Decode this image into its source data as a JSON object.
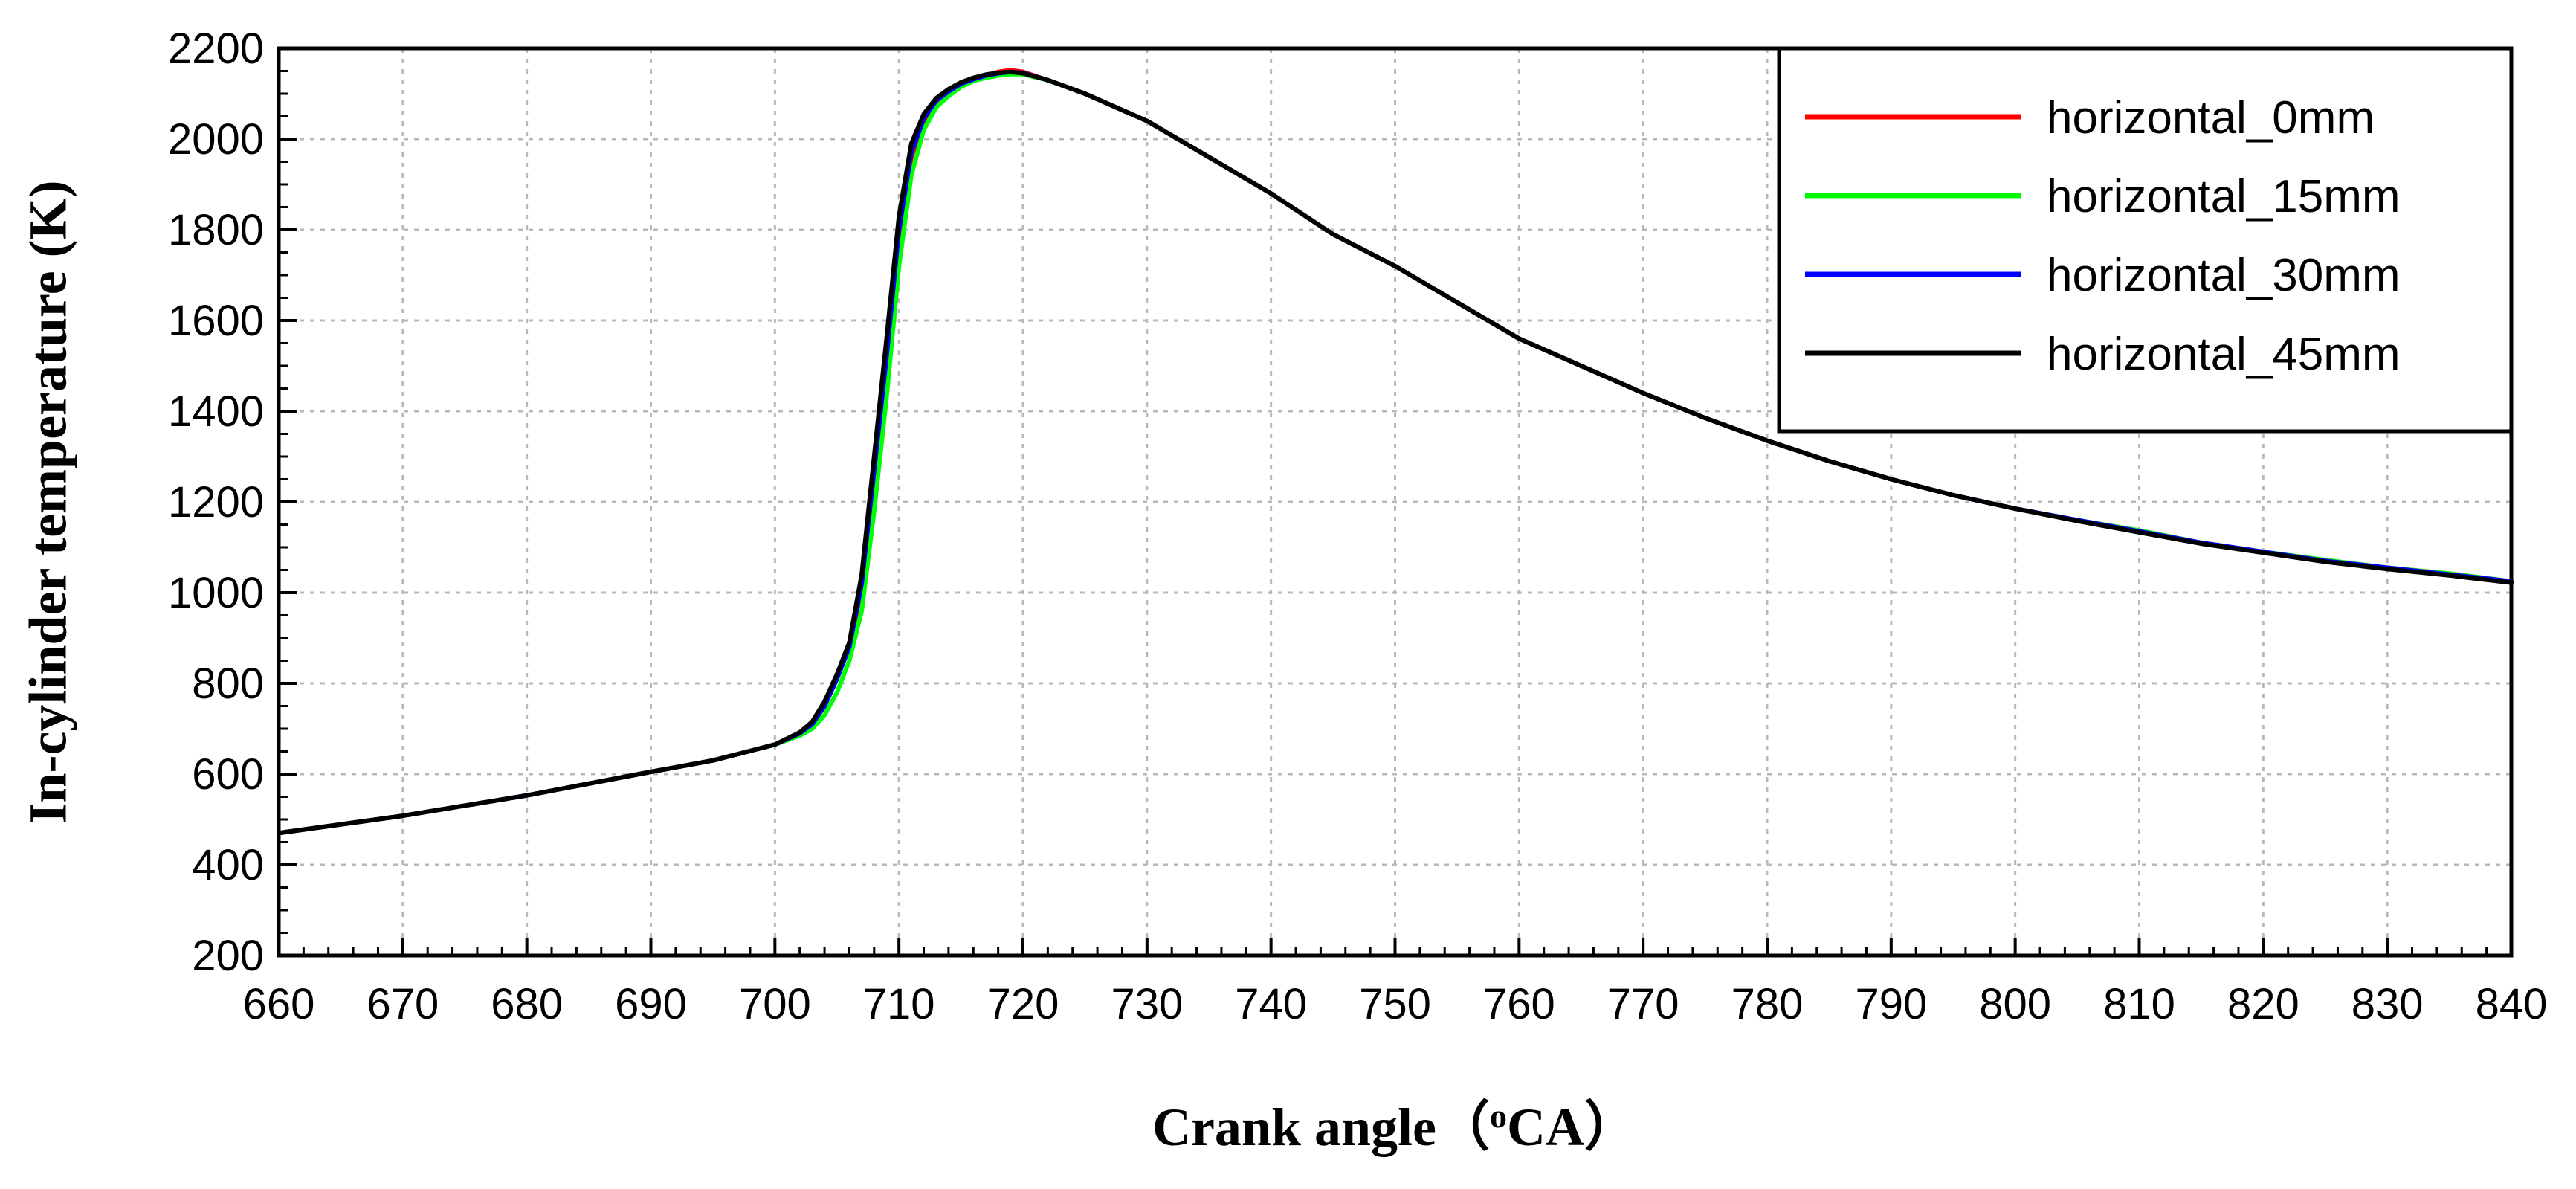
{
  "chart_data": {
    "type": "line",
    "title": "",
    "xlabel_pre": "Crank angle（",
    "xlabel_sup": "o",
    "xlabel_post": "CA）",
    "ylabel": "In-cylinder temperature (K)",
    "xlim": [
      660,
      840
    ],
    "ylim": [
      200,
      2200
    ],
    "xticks": [
      "660",
      "670",
      "680",
      "690",
      "700",
      "710",
      "720",
      "730",
      "740",
      "750",
      "760",
      "770",
      "780",
      "790",
      "800",
      "810",
      "820",
      "830",
      "840"
    ],
    "yticks": [
      "200",
      "400",
      "600",
      "800",
      "1000",
      "1200",
      "1400",
      "1600",
      "1800",
      "2000",
      "2200"
    ],
    "grid": true,
    "legend_position": "top-right",
    "series": [
      {
        "name": "horizontal_0mm",
        "color": "#ff0000",
        "points": [
          [
            660,
            470
          ],
          [
            670,
            508
          ],
          [
            680,
            553
          ],
          [
            690,
            605
          ],
          [
            695,
            630
          ],
          [
            700,
            665
          ],
          [
            702,
            690
          ],
          [
            703,
            710
          ],
          [
            704,
            750
          ],
          [
            705,
            810
          ],
          [
            706,
            880
          ],
          [
            707,
            1010
          ],
          [
            708,
            1250
          ],
          [
            709,
            1500
          ],
          [
            710,
            1780
          ],
          [
            711,
            1960
          ],
          [
            712,
            2040
          ],
          [
            713,
            2080
          ],
          [
            714,
            2100
          ],
          [
            715,
            2120
          ],
          [
            716,
            2130
          ],
          [
            717,
            2140
          ],
          [
            718,
            2148
          ],
          [
            719,
            2152
          ],
          [
            720,
            2148
          ],
          [
            722,
            2130
          ],
          [
            725,
            2100
          ],
          [
            730,
            2040
          ],
          [
            735,
            1960
          ],
          [
            740,
            1880
          ],
          [
            745,
            1790
          ],
          [
            750,
            1720
          ],
          [
            755,
            1640
          ],
          [
            760,
            1560
          ],
          [
            765,
            1500
          ],
          [
            770,
            1440
          ],
          [
            775,
            1385
          ],
          [
            780,
            1335
          ],
          [
            785,
            1290
          ],
          [
            790,
            1250
          ],
          [
            795,
            1215
          ],
          [
            800,
            1185
          ],
          [
            805,
            1160
          ],
          [
            810,
            1137
          ],
          [
            815,
            1110
          ],
          [
            820,
            1090
          ],
          [
            825,
            1070
          ],
          [
            830,
            1055
          ],
          [
            835,
            1042
          ],
          [
            840,
            1025
          ]
        ]
      },
      {
        "name": "horizontal_15mm",
        "color": "#00ff00",
        "points": [
          [
            660,
            470
          ],
          [
            670,
            508
          ],
          [
            680,
            553
          ],
          [
            690,
            605
          ],
          [
            695,
            630
          ],
          [
            700,
            665
          ],
          [
            702,
            685
          ],
          [
            703,
            700
          ],
          [
            704,
            730
          ],
          [
            705,
            780
          ],
          [
            706,
            850
          ],
          [
            707,
            960
          ],
          [
            708,
            1180
          ],
          [
            709,
            1430
          ],
          [
            710,
            1720
          ],
          [
            711,
            1920
          ],
          [
            712,
            2020
          ],
          [
            713,
            2070
          ],
          [
            714,
            2095
          ],
          [
            715,
            2115
          ],
          [
            716,
            2128
          ],
          [
            717,
            2135
          ],
          [
            718,
            2140
          ],
          [
            719,
            2143
          ],
          [
            720,
            2143
          ],
          [
            722,
            2130
          ],
          [
            725,
            2100
          ],
          [
            730,
            2040
          ],
          [
            735,
            1960
          ],
          [
            740,
            1880
          ],
          [
            745,
            1790
          ],
          [
            750,
            1720
          ],
          [
            755,
            1640
          ],
          [
            760,
            1560
          ],
          [
            765,
            1500
          ],
          [
            770,
            1440
          ],
          [
            775,
            1385
          ],
          [
            780,
            1335
          ],
          [
            785,
            1290
          ],
          [
            790,
            1250
          ],
          [
            795,
            1215
          ],
          [
            800,
            1185
          ],
          [
            805,
            1160
          ],
          [
            810,
            1137
          ],
          [
            815,
            1110
          ],
          [
            820,
            1090
          ],
          [
            825,
            1072
          ],
          [
            830,
            1055
          ],
          [
            835,
            1042
          ],
          [
            840,
            1025
          ]
        ]
      },
      {
        "name": "horizontal_30mm",
        "color": "#0000ff",
        "points": [
          [
            660,
            470
          ],
          [
            670,
            508
          ],
          [
            680,
            553
          ],
          [
            690,
            605
          ],
          [
            695,
            630
          ],
          [
            700,
            665
          ],
          [
            702,
            690
          ],
          [
            703,
            710
          ],
          [
            704,
            750
          ],
          [
            705,
            810
          ],
          [
            706,
            880
          ],
          [
            707,
            1020
          ],
          [
            708,
            1270
          ],
          [
            709,
            1520
          ],
          [
            710,
            1800
          ],
          [
            711,
            1970
          ],
          [
            712,
            2045
          ],
          [
            713,
            2085
          ],
          [
            714,
            2105
          ],
          [
            715,
            2122
          ],
          [
            716,
            2132
          ],
          [
            717,
            2140
          ],
          [
            718,
            2145
          ],
          [
            719,
            2148
          ],
          [
            720,
            2146
          ],
          [
            722,
            2130
          ],
          [
            725,
            2100
          ],
          [
            730,
            2040
          ],
          [
            735,
            1960
          ],
          [
            740,
            1880
          ],
          [
            745,
            1790
          ],
          [
            750,
            1720
          ],
          [
            755,
            1640
          ],
          [
            760,
            1560
          ],
          [
            765,
            1500
          ],
          [
            770,
            1440
          ],
          [
            775,
            1385
          ],
          [
            780,
            1335
          ],
          [
            785,
            1290
          ],
          [
            790,
            1250
          ],
          [
            795,
            1215
          ],
          [
            800,
            1185
          ],
          [
            805,
            1160
          ],
          [
            810,
            1135
          ],
          [
            815,
            1110
          ],
          [
            820,
            1090
          ],
          [
            825,
            1070
          ],
          [
            830,
            1055
          ],
          [
            835,
            1040
          ],
          [
            840,
            1025
          ]
        ]
      },
      {
        "name": "horizontal_45mm",
        "color": "#000000",
        "points": [
          [
            660,
            470
          ],
          [
            670,
            508
          ],
          [
            680,
            553
          ],
          [
            690,
            605
          ],
          [
            695,
            630
          ],
          [
            700,
            665
          ],
          [
            702,
            692
          ],
          [
            703,
            715
          ],
          [
            704,
            760
          ],
          [
            705,
            820
          ],
          [
            706,
            890
          ],
          [
            707,
            1040
          ],
          [
            708,
            1300
          ],
          [
            709,
            1560
          ],
          [
            710,
            1830
          ],
          [
            711,
            1990
          ],
          [
            712,
            2055
          ],
          [
            713,
            2090
          ],
          [
            714,
            2110
          ],
          [
            715,
            2125
          ],
          [
            716,
            2135
          ],
          [
            717,
            2142
          ],
          [
            718,
            2146
          ],
          [
            719,
            2148
          ],
          [
            720,
            2145
          ],
          [
            722,
            2130
          ],
          [
            725,
            2100
          ],
          [
            730,
            2040
          ],
          [
            735,
            1960
          ],
          [
            740,
            1880
          ],
          [
            745,
            1790
          ],
          [
            750,
            1720
          ],
          [
            755,
            1640
          ],
          [
            760,
            1560
          ],
          [
            765,
            1500
          ],
          [
            770,
            1440
          ],
          [
            775,
            1385
          ],
          [
            780,
            1335
          ],
          [
            785,
            1290
          ],
          [
            790,
            1250
          ],
          [
            795,
            1215
          ],
          [
            800,
            1185
          ],
          [
            805,
            1158
          ],
          [
            810,
            1133
          ],
          [
            815,
            1108
          ],
          [
            820,
            1088
          ],
          [
            825,
            1068
          ],
          [
            830,
            1052
          ],
          [
            835,
            1038
          ],
          [
            840,
            1022
          ]
        ]
      }
    ]
  }
}
